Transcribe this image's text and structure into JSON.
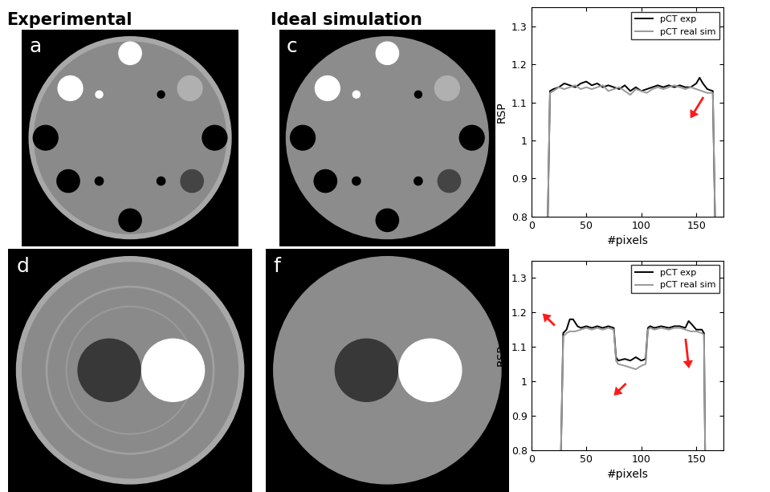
{
  "images": {
    "headings": [
      "Experimental",
      "Ideal simulation"
    ],
    "panels": [
      [
        "a",
        "c"
      ],
      [
        "d",
        "f"
      ]
    ]
  },
  "chart_data": [
    {
      "type": "line",
      "xlabel": "#pixels",
      "ylabel": "RSP",
      "xlim": [
        0,
        175
      ],
      "xticks": [
        0,
        50,
        100,
        150
      ],
      "ylim": [
        0.8,
        1.35
      ],
      "yticks": [
        0.8,
        0.9,
        1,
        1.1,
        1.2,
        1.3
      ],
      "grid": false,
      "legend": "upper right",
      "series": [
        {
          "name": "pCT exp",
          "color": "#000000",
          "x": [
            15,
            17,
            20,
            25,
            30,
            35,
            40,
            45,
            50,
            55,
            60,
            65,
            70,
            75,
            80,
            85,
            90,
            95,
            100,
            105,
            110,
            115,
            120,
            125,
            130,
            135,
            140,
            145,
            150,
            153,
            156,
            160,
            165,
            167
          ],
          "values": [
            0.8,
            1.13,
            1.135,
            1.14,
            1.15,
            1.145,
            1.14,
            1.15,
            1.155,
            1.145,
            1.15,
            1.14,
            1.145,
            1.14,
            1.135,
            1.145,
            1.13,
            1.14,
            1.13,
            1.135,
            1.14,
            1.145,
            1.14,
            1.145,
            1.14,
            1.145,
            1.14,
            1.14,
            1.15,
            1.165,
            1.15,
            1.135,
            1.13,
            0.8
          ]
        },
        {
          "name": "pCT real sim",
          "color": "#999999",
          "x": [
            15,
            17,
            20,
            25,
            30,
            35,
            40,
            45,
            50,
            55,
            60,
            65,
            70,
            75,
            80,
            85,
            90,
            95,
            100,
            105,
            110,
            115,
            120,
            125,
            130,
            135,
            140,
            145,
            150,
            155,
            160,
            165,
            167
          ],
          "values": [
            0.8,
            1.125,
            1.13,
            1.14,
            1.135,
            1.14,
            1.145,
            1.135,
            1.14,
            1.135,
            1.14,
            1.145,
            1.13,
            1.135,
            1.14,
            1.13,
            1.12,
            1.135,
            1.13,
            1.125,
            1.135,
            1.14,
            1.135,
            1.14,
            1.145,
            1.14,
            1.135,
            1.14,
            1.135,
            1.13,
            1.125,
            1.125,
            0.8
          ]
        }
      ]
    },
    {
      "type": "line",
      "xlabel": "#pixels",
      "ylabel": "RSP",
      "xlim": [
        0,
        175
      ],
      "xticks": [
        0,
        50,
        100,
        150
      ],
      "ylim": [
        0.8,
        1.35
      ],
      "yticks": [
        0.8,
        0.9,
        1,
        1.1,
        1.2,
        1.3
      ],
      "grid": false,
      "legend": "upper right",
      "series": [
        {
          "name": "pCT exp",
          "color": "#000000",
          "x": [
            27,
            29,
            32,
            35,
            38,
            42,
            45,
            50,
            55,
            60,
            65,
            70,
            75,
            77,
            79,
            85,
            90,
            95,
            100,
            104,
            106,
            108,
            112,
            118,
            125,
            130,
            135,
            140,
            143,
            146,
            150,
            155,
            157,
            158
          ],
          "values": [
            0.8,
            1.14,
            1.15,
            1.18,
            1.18,
            1.16,
            1.155,
            1.16,
            1.155,
            1.16,
            1.155,
            1.16,
            1.155,
            1.07,
            1.06,
            1.065,
            1.06,
            1.07,
            1.06,
            1.065,
            1.155,
            1.16,
            1.155,
            1.16,
            1.155,
            1.16,
            1.16,
            1.155,
            1.175,
            1.165,
            1.15,
            1.15,
            1.14,
            0.8
          ]
        },
        {
          "name": "pCT real sim",
          "color": "#999999",
          "x": [
            27,
            29,
            32,
            35,
            40,
            45,
            50,
            55,
            60,
            65,
            70,
            75,
            77,
            79,
            85,
            90,
            95,
            100,
            104,
            106,
            108,
            112,
            118,
            125,
            130,
            135,
            140,
            145,
            150,
            155,
            157,
            158
          ],
          "values": [
            0.8,
            1.13,
            1.14,
            1.145,
            1.145,
            1.15,
            1.155,
            1.15,
            1.155,
            1.15,
            1.155,
            1.15,
            1.06,
            1.05,
            1.045,
            1.04,
            1.035,
            1.045,
            1.05,
            1.15,
            1.155,
            1.15,
            1.155,
            1.15,
            1.155,
            1.155,
            1.15,
            1.145,
            1.145,
            1.14,
            1.135,
            0.8
          ]
        }
      ]
    }
  ]
}
